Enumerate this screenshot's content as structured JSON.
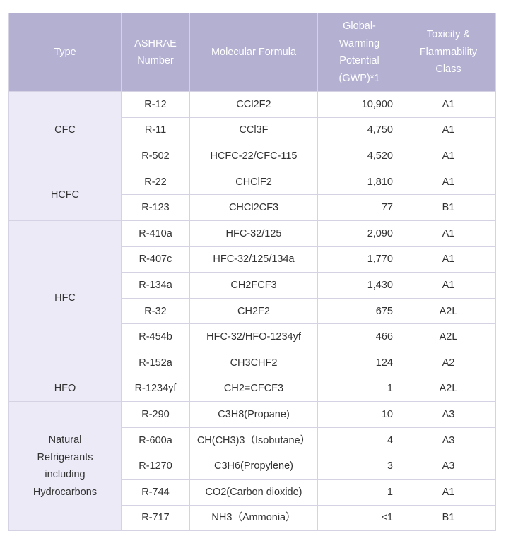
{
  "headers": {
    "type": "Type",
    "ashrae": "ASHRAE\nNumber",
    "formula": "Molecular Formula",
    "gwp": "Global-\nWarming\nPotential\n(GWP)*1",
    "class": "Toxicity &\nFlammability\nClass"
  },
  "groups": [
    {
      "type": "CFC",
      "rows": [
        {
          "ashrae": "R-12",
          "formula": "CCl2F2",
          "gwp": "10,900",
          "class": "A1"
        },
        {
          "ashrae": "R-11",
          "formula": "CCl3F",
          "gwp": "4,750",
          "class": "A1"
        },
        {
          "ashrae": "R-502",
          "formula": "HCFC-22/CFC-115",
          "gwp": "4,520",
          "class": "A1"
        }
      ]
    },
    {
      "type": "HCFC",
      "rows": [
        {
          "ashrae": "R-22",
          "formula": "CHClF2",
          "gwp": "1,810",
          "class": "A1"
        },
        {
          "ashrae": "R-123",
          "formula": "CHCl2CF3",
          "gwp": "77",
          "class": "B1"
        }
      ]
    },
    {
      "type": "HFC",
      "rows": [
        {
          "ashrae": "R-410a",
          "formula": "HFC-32/125",
          "gwp": "2,090",
          "class": "A1"
        },
        {
          "ashrae": "R-407c",
          "formula": "HFC-32/125/134a",
          "gwp": "1,770",
          "class": "A1"
        },
        {
          "ashrae": "R-134a",
          "formula": "CH2FCF3",
          "gwp": "1,430",
          "class": "A1"
        },
        {
          "ashrae": "R-32",
          "formula": "CH2F2",
          "gwp": "675",
          "class": "A2L"
        },
        {
          "ashrae": "R-454b",
          "formula": "HFC-32/HFO-1234yf",
          "gwp": "466",
          "class": "A2L"
        },
        {
          "ashrae": "R-152a",
          "formula": "CH3CHF2",
          "gwp": "124",
          "class": "A2"
        }
      ]
    },
    {
      "type": "HFO",
      "rows": [
        {
          "ashrae": "R-1234yf",
          "formula": "CH2=CFCF3",
          "gwp": "1",
          "class": "A2L"
        }
      ]
    },
    {
      "type": "Natural\nRefrigerants\nincluding\nHydrocarbons",
      "rows": [
        {
          "ashrae": "R-290",
          "formula": "C3H8(Propane)",
          "gwp": "10",
          "class": "A3"
        },
        {
          "ashrae": "R-600a",
          "formula": "CH(CH3)3（Isobutane）",
          "gwp": "4",
          "class": "A3"
        },
        {
          "ashrae": "R-1270",
          "formula": "C3H6(Propylene)",
          "gwp": "3",
          "class": "A3"
        },
        {
          "ashrae": "R-744",
          "formula": "CO2(Carbon dioxide)",
          "gwp": "1",
          "class": "A1"
        },
        {
          "ashrae": "R-717",
          "formula": "NH3（Ammonia）",
          "gwp": "<1",
          "class": "B1"
        }
      ]
    }
  ]
}
